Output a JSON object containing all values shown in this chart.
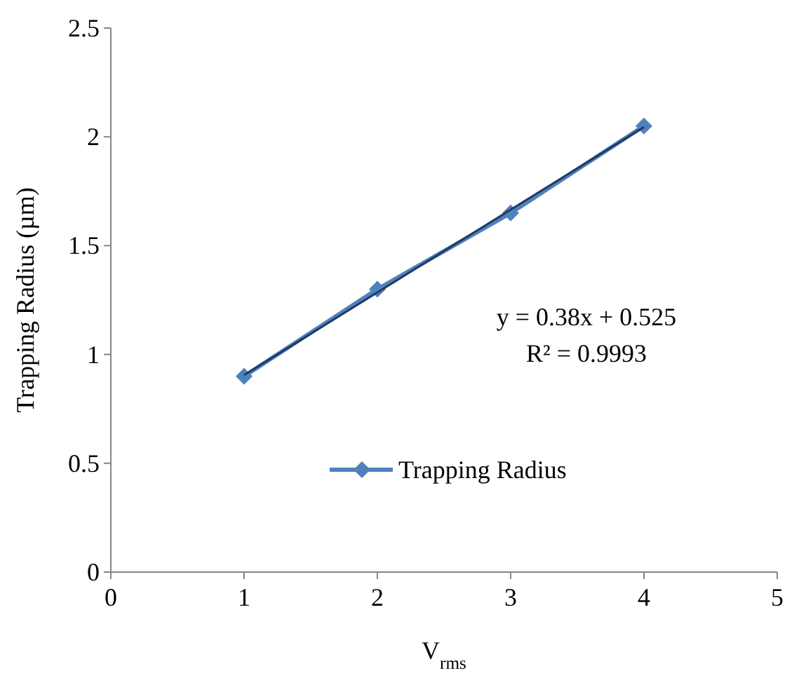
{
  "chart_data": {
    "type": "line",
    "xlabel": "V$_{rms}$",
    "ylabel": "Trapping Radius (µm)",
    "xlim": [
      0,
      5
    ],
    "xticks": [
      0,
      1,
      2,
      3,
      4,
      5
    ],
    "ylim": [
      0,
      2.5
    ],
    "yticks": [
      0,
      0.5,
      1,
      1.5,
      2,
      2.5
    ],
    "x": [
      1,
      2,
      3,
      4
    ],
    "series": [
      {
        "name": "Trapping Radius",
        "color": "#4f81bd",
        "values": [
          0.9,
          1.3,
          1.65,
          2.05
        ],
        "marker": "diamond"
      },
      {
        "type": "line",
        "color": "#1f3a60",
        "x": [
          1,
          4
        ],
        "values": [
          0.905,
          2.045
        ],
        "marker": "none"
      }
    ],
    "annotations": [
      "y = 0.38x + 0.525",
      "R² = 0.9993"
    ],
    "grid": false,
    "legend": "bottom"
  }
}
